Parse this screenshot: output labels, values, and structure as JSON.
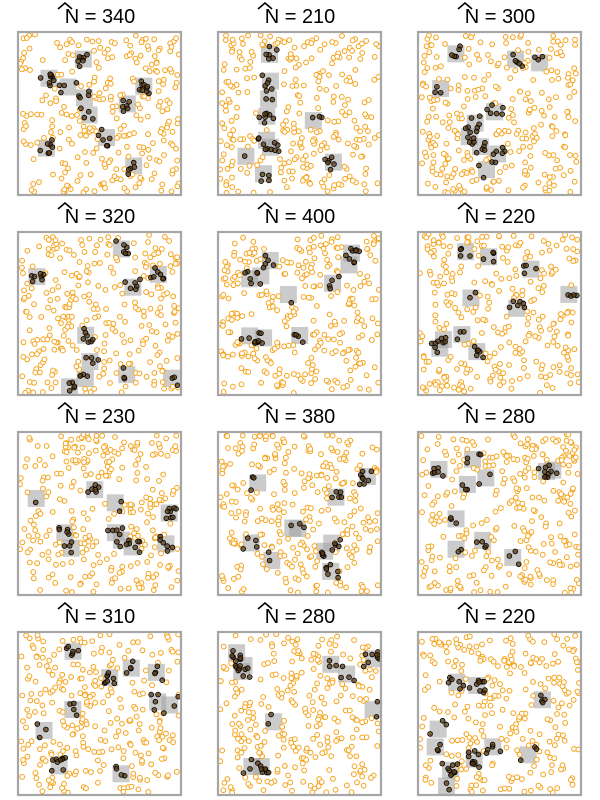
{
  "chart_data": {
    "type": "scatter",
    "panel_count": 12,
    "layout": {
      "rows": 4,
      "cols": 3
    },
    "title_symbol": "N",
    "title_operator": "=",
    "colors": {
      "background_points": "#f5a31a",
      "background_points_fill": "#ffffff",
      "captured_points": "#000000",
      "trap_fill": "#a0a0a0",
      "frame": "#a6a6a6"
    },
    "panels": [
      {
        "estimate": "340",
        "n_traps": 10,
        "seed": 11
      },
      {
        "estimate": "210",
        "n_traps": 10,
        "seed": 23
      },
      {
        "estimate": "300",
        "n_traps": 10,
        "seed": 37
      },
      {
        "estimate": "320",
        "n_traps": 10,
        "seed": 41
      },
      {
        "estimate": "400",
        "n_traps": 10,
        "seed": 53
      },
      {
        "estimate": "220",
        "n_traps": 10,
        "seed": 67
      },
      {
        "estimate": "230",
        "n_traps": 10,
        "seed": 71
      },
      {
        "estimate": "380",
        "n_traps": 10,
        "seed": 83
      },
      {
        "estimate": "280",
        "n_traps": 10,
        "seed": 97
      },
      {
        "estimate": "310",
        "n_traps": 10,
        "seed": 101
      },
      {
        "estimate": "280",
        "n_traps": 10,
        "seed": 113
      },
      {
        "estimate": "220",
        "n_traps": 10,
        "seed": 127
      }
    ],
    "population_points": 300,
    "xlim": [
      0,
      1
    ],
    "ylim": [
      0,
      1
    ],
    "grid": false,
    "legend": "none"
  }
}
